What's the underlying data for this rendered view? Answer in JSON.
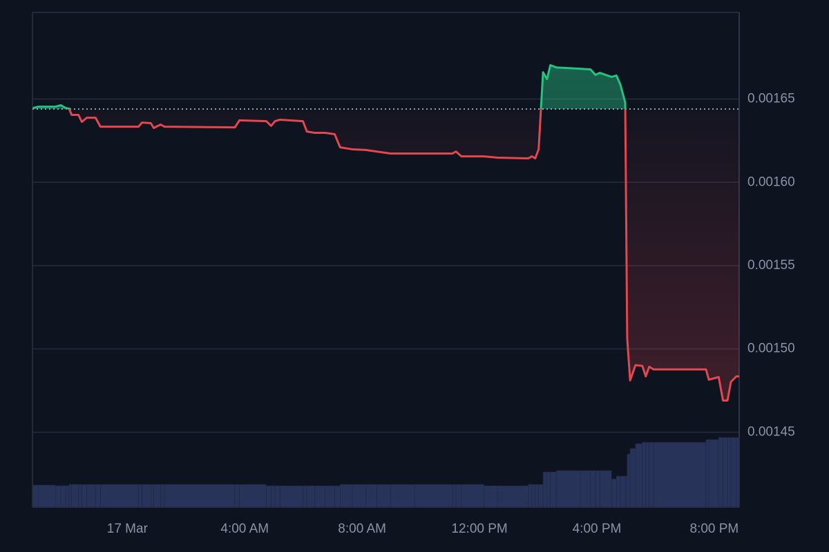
{
  "chart_data": {
    "type": "baseline",
    "x": [
      "16 Mar 20:47",
      "16 Mar 20:58",
      "16 Mar 21:33",
      "16 Mar 21:44",
      "16 Mar 21:54",
      "16 Mar 22:01",
      "16 Mar 22:06",
      "16 Mar 22:20",
      "16 Mar 22:27",
      "16 Mar 22:37",
      "16 Mar 22:55",
      "16 Mar 23:05",
      "17 Mar 00:23",
      "17 Mar 00:30",
      "17 Mar 00:48",
      "17 Mar 00:54",
      "17 Mar 01:08",
      "17 Mar 01:16",
      "17 Mar 03:40",
      "17 Mar 03:49",
      "17 Mar 04:44",
      "17 Mar 04:54",
      "17 Mar 05:02",
      "17 Mar 05:12",
      "17 Mar 05:59",
      "17 Mar 06:07",
      "17 Mar 06:23",
      "17 Mar 06:44",
      "17 Mar 07:04",
      "17 Mar 07:15",
      "17 Mar 07:40",
      "17 Mar 08:08",
      "17 Mar 08:30",
      "17 Mar 08:58",
      "17 Mar 09:47",
      "17 Mar 11:05",
      "17 Mar 11:12",
      "17 Mar 11:23",
      "17 Mar 12:09",
      "17 Mar 12:37",
      "17 Mar 13:40",
      "17 Mar 13:47",
      "17 Mar 13:54",
      "17 Mar 14:01",
      "17 Mar 14:10",
      "17 Mar 14:18",
      "17 Mar 14:25",
      "17 Mar 14:37",
      "17 Mar 15:26",
      "17 Mar 15:47",
      "17 Mar 15:57",
      "17 Mar 16:06",
      "17 Mar 16:30",
      "17 Mar 16:40",
      "17 Mar 16:48",
      "17 Mar 16:58",
      "17 Mar 17:02",
      "17 Mar 17:08",
      "17 Mar 17:19",
      "17 Mar 17:33",
      "17 Mar 17:40",
      "17 Mar 17:47",
      "17 Mar 17:56",
      "17 Mar 19:43",
      "17 Mar 19:49",
      "17 Mar 20:09",
      "17 Mar 20:18",
      "17 Mar 20:27",
      "17 Mar 20:34",
      "17 Mar 20:45",
      "17 Mar 20:51"
    ],
    "values": [
      0.0016446,
      0.0016454,
      0.0016454,
      0.0016463,
      0.0016446,
      0.0016442,
      0.0016405,
      0.0016405,
      0.0016363,
      0.0016388,
      0.0016388,
      0.0016334,
      0.0016334,
      0.0016359,
      0.0016355,
      0.0016326,
      0.0016347,
      0.0016334,
      0.001633,
      0.0016372,
      0.0016367,
      0.0016339,
      0.0016367,
      0.0016376,
      0.0016367,
      0.0016305,
      0.0016297,
      0.0016297,
      0.0016289,
      0.001621,
      0.0016198,
      0.0016194,
      0.0016185,
      0.0016173,
      0.0016173,
      0.0016173,
      0.0016185,
      0.0016156,
      0.0016156,
      0.0016148,
      0.0016144,
      0.0016156,
      0.0016144,
      0.0016198,
      0.0016661,
      0.001662,
      0.0016703,
      0.001669,
      0.0016682,
      0.0016678,
      0.0016645,
      0.0016657,
      0.0016633,
      0.0016641,
      0.0016587,
      0.0016479,
      0.0015063,
      0.0014811,
      0.0014902,
      0.0014898,
      0.0014835,
      0.0014893,
      0.0014877,
      0.0014877,
      0.0014815,
      0.0014831,
      0.001469,
      0.001469,
      0.0014802,
      0.0014835,
      0.0014835
    ],
    "volume": [
      32,
      32,
      31,
      31,
      31,
      33,
      33,
      33,
      33,
      33,
      33,
      33,
      33,
      33,
      33,
      33,
      33,
      33,
      33,
      33,
      31,
      31,
      31,
      31,
      31,
      31,
      31,
      31,
      31,
      33,
      33,
      33,
      33,
      33,
      33,
      33,
      33,
      33,
      31,
      31,
      33,
      33,
      33,
      33,
      51,
      51,
      51,
      53,
      53,
      53,
      53,
      53,
      41,
      45,
      45,
      45,
      77,
      85,
      92,
      94,
      94,
      94,
      94,
      98,
      98,
      101,
      101,
      101,
      101,
      101,
      101
    ],
    "volume_lim": [
      0,
      717
    ],
    "baseline": 0.001644,
    "up_color": "#26c281",
    "down_color": "#e5474f",
    "volume_color": "#28335a",
    "xlim": [
      "16 Mar 20:46",
      "17 Mar 20:51"
    ],
    "xticks": [
      {
        "value": "17 Mar 00:00",
        "label": "17 Mar"
      },
      {
        "value": "17 Mar 04:00",
        "label": "4:00 AM"
      },
      {
        "value": "17 Mar 08:00",
        "label": "8:00 AM"
      },
      {
        "value": "17 Mar 12:00",
        "label": "12:00 PM"
      },
      {
        "value": "17 Mar 16:00",
        "label": "4:00 PM"
      },
      {
        "value": "17 Mar 20:00",
        "label": "8:00 PM"
      }
    ],
    "ylim": [
      0.001405,
      0.001702
    ],
    "yticks": [
      0.00145,
      {
        "value": 0.0015,
        "label": "0.00150"
      },
      0.00155,
      {
        "value": 0.0016,
        "label": "0.00160"
      },
      0.00165
    ],
    "grid": true
  }
}
